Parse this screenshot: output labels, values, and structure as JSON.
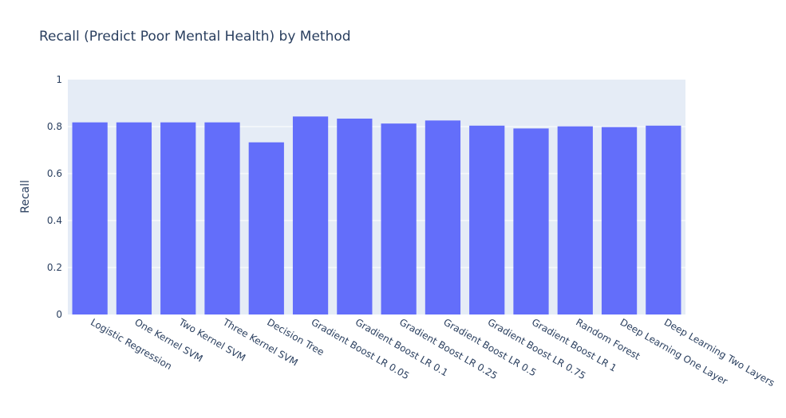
{
  "chart_data": {
    "type": "bar",
    "title": "Recall (Predict Poor Mental Health) by Method",
    "xlabel": "",
    "ylabel": "Recall",
    "ylim": [
      0,
      1
    ],
    "yticks": [
      "0",
      "0.2",
      "0.4",
      "0.6",
      "0.8",
      "1"
    ],
    "grid": true,
    "categories": [
      "Logistic Regression",
      "One Kernel SVM",
      "Two Kernel SVM",
      "Three Kernel SVM",
      "Decision Tree",
      "Gradient Boost LR 0.05",
      "Gradient Boost LR 0.1",
      "Gradient Boost LR 0.25",
      "Gradient Boost LR 0.5",
      "Gradient Boost LR 0.75",
      "Gradient Boost LR 1",
      "Random Forest",
      "Deep Learning One Layer",
      "Deep Learning Two Layers"
    ],
    "values": [
      0.818,
      0.818,
      0.818,
      0.818,
      0.733,
      0.843,
      0.834,
      0.813,
      0.826,
      0.804,
      0.792,
      0.801,
      0.798,
      0.804
    ],
    "colors": {
      "bar": "#636efa",
      "plot_bg": "#e5ecf6",
      "grid": "#ffffff",
      "text": "#2a3f5f"
    }
  }
}
